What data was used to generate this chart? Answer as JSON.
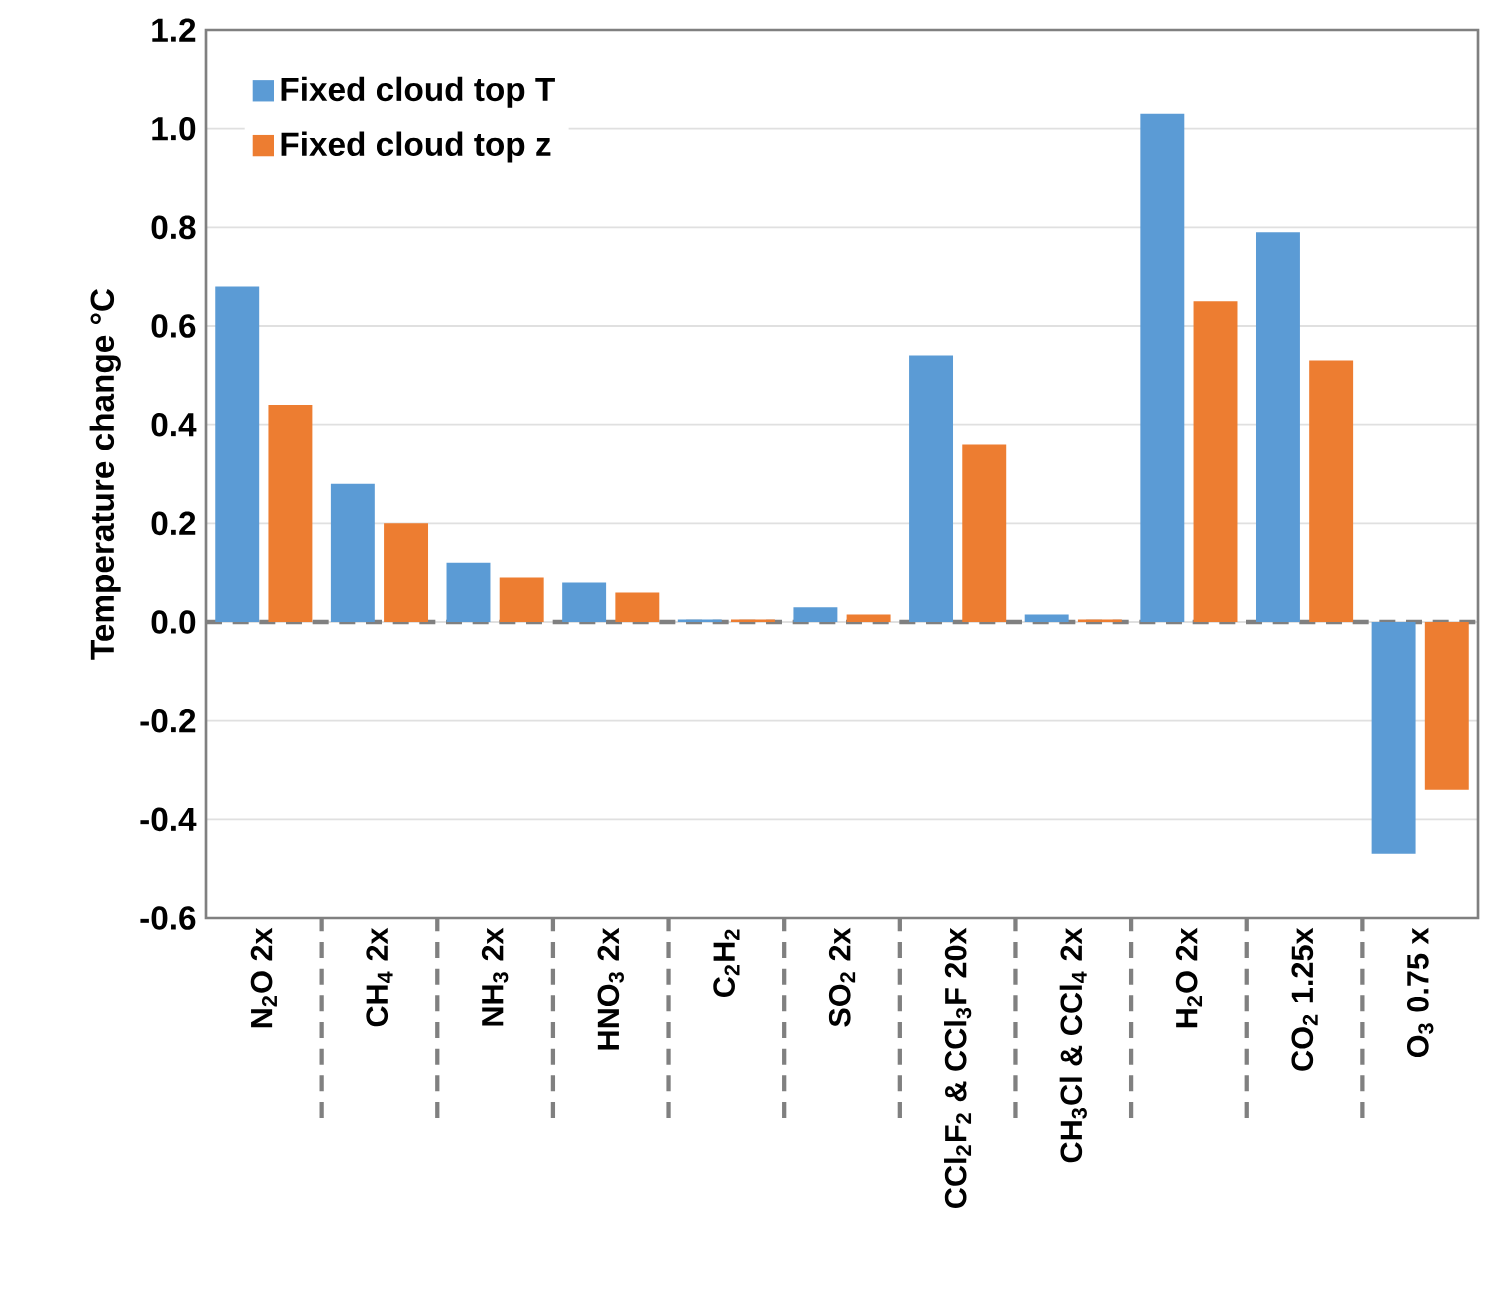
{
  "chart_data": {
    "type": "bar",
    "ylabel": "Temperature change  °C",
    "categories": [
      "N$_{2}$O 2x",
      "CH$_{4}$ 2x",
      "NH$_{3}$ 2x",
      "HNO$_{3}$ 2x",
      "C$_{2}$H$_{2}$",
      "SO$_{2}$ 2x",
      "CCl$_{2}$F$_{2}$ & CCl$_{3}$F 20x",
      "CH$_{3}$Cl & CCl$_{4}$ 2x",
      "H$_{2}$O 2x",
      "CO$_{2}$ 1.25x",
      "O$_{3}$ 0.75 x"
    ],
    "series": [
      {
        "name": "Fixed cloud top T",
        "color": "#5b9bd5",
        "values": [
          0.68,
          0.28,
          0.12,
          0.08,
          0.005,
          0.03,
          0.54,
          0.015,
          1.03,
          0.79,
          -0.47
        ]
      },
      {
        "name": "Fixed cloud top z",
        "color": "#ed7d31",
        "values": [
          0.44,
          0.2,
          0.09,
          0.06,
          0.005,
          0.015,
          0.36,
          0.005,
          0.65,
          0.53,
          -0.34
        ]
      }
    ],
    "ylim": [
      -0.6,
      1.2
    ],
    "yticks": [
      -0.6,
      -0.4,
      -0.2,
      {
        "value": 0,
        "label": "0.0"
      },
      0.2,
      0.4,
      0.6,
      0.8,
      {
        "value": 1,
        "label": "1.0"
      },
      1.2
    ],
    "ref_lines": [
      {
        "axis": "y",
        "value": 0,
        "color": "#808080",
        "line_style": "dashed"
      }
    ],
    "grid": "y",
    "legend": "top left"
  }
}
